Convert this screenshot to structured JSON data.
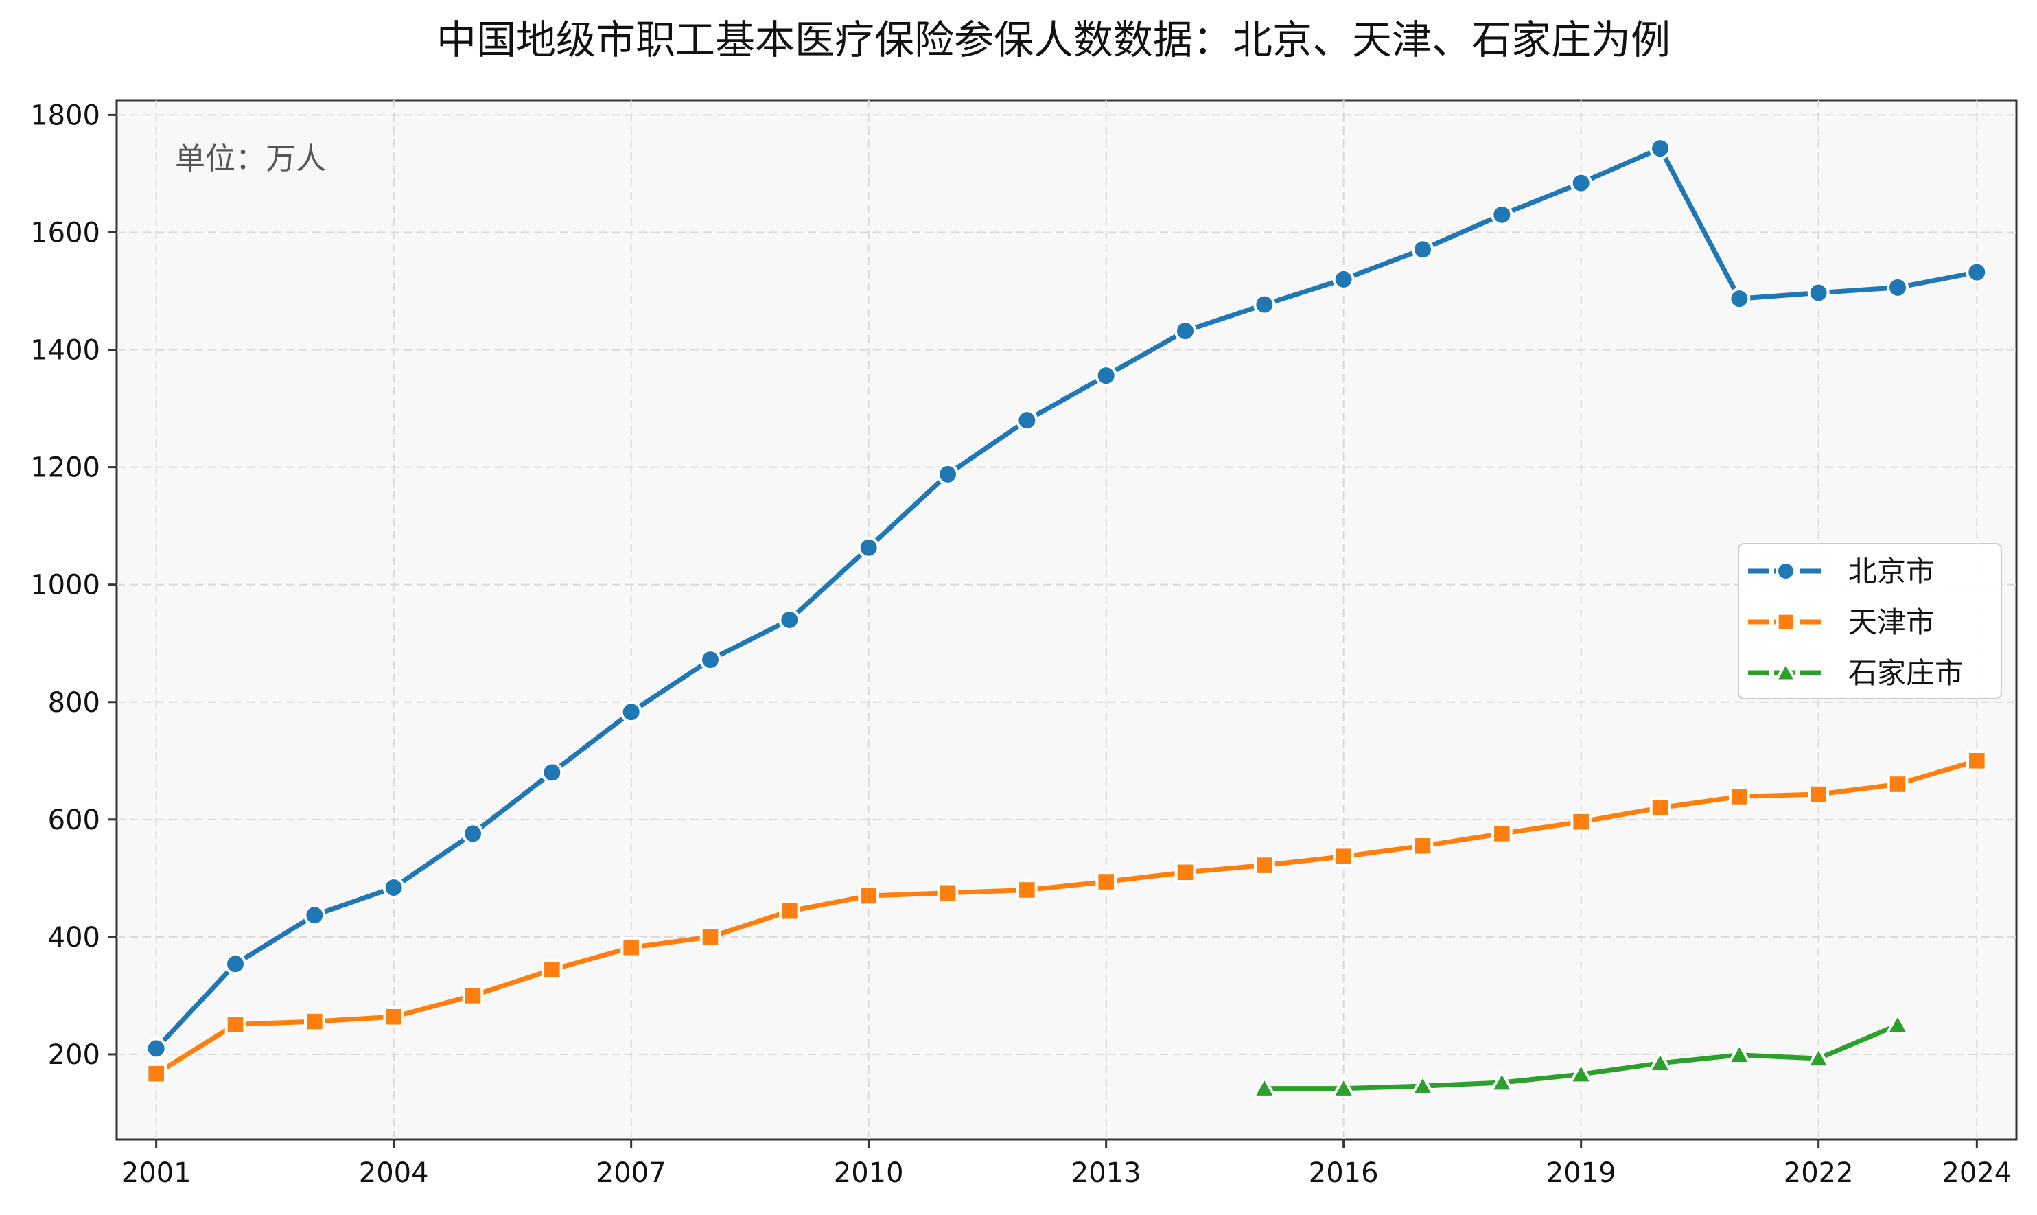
{
  "chart_data": {
    "type": "line",
    "title": "中国地级市职工基本医疗保险参保人数数据：北京、天津、石家庄为例",
    "unit_note": "单位：万人",
    "xlabel": "",
    "ylabel": "",
    "x": [
      2001,
      2002,
      2003,
      2004,
      2005,
      2006,
      2007,
      2008,
      2009,
      2010,
      2011,
      2012,
      2013,
      2014,
      2015,
      2016,
      2017,
      2018,
      2019,
      2020,
      2021,
      2022,
      2023,
      2024
    ],
    "x_ticks": [
      2001,
      2004,
      2007,
      2010,
      2013,
      2016,
      2019,
      2022,
      2024
    ],
    "y_ticks": [
      200,
      400,
      600,
      800,
      1000,
      1200,
      1400,
      1600,
      1800
    ],
    "xlim": [
      2000.5,
      2024.5
    ],
    "ylim": [
      55,
      1825
    ],
    "grid": true,
    "legend_position": "center-right",
    "series": [
      {
        "name": "北京市",
        "color": "#1f77b4",
        "marker": "circle",
        "values": [
          210,
          354,
          437,
          484,
          576,
          680,
          783,
          872,
          940,
          1063,
          1188,
          1280,
          1356,
          1432,
          1477,
          1520,
          1571,
          1630,
          1684,
          1743,
          1487,
          1497,
          1506,
          1532
        ]
      },
      {
        "name": "天津市",
        "color": "#ff7f0e",
        "marker": "square",
        "values": [
          167,
          251,
          256,
          264,
          300,
          344,
          382,
          400,
          444,
          470,
          475,
          480,
          494,
          510,
          522,
          537,
          555,
          576,
          596,
          620,
          639,
          643,
          660,
          700
        ]
      },
      {
        "name": "石家庄市",
        "color": "#2ca02c",
        "marker": "triangle",
        "values": [
          null,
          null,
          null,
          null,
          null,
          null,
          null,
          null,
          null,
          null,
          null,
          null,
          null,
          null,
          142,
          142,
          146,
          152,
          166,
          185,
          199,
          193,
          250,
          null
        ]
      }
    ]
  }
}
